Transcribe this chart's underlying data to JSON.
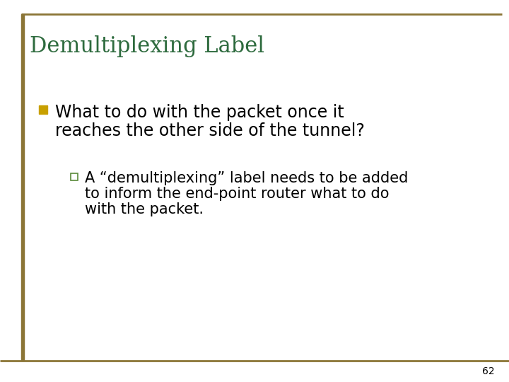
{
  "title": "Demultiplexing Label",
  "title_color": "#2E6B3E",
  "title_fontsize": 22,
  "background_color": "#FFFFFF",
  "border_color": "#8B7536",
  "slide_number": "62",
  "bullet1_marker_color": "#C8A000",
  "bullet1_text_line1": "What to do with the packet once it",
  "bullet1_text_line2": "reaches the other side of the tunnel?",
  "bullet1_fontsize": 17,
  "bullet2_marker_edgecolor": "#5A8A3A",
  "bullet2_text_line1": "A “demultiplexing” label needs to be added",
  "bullet2_text_line2": "to inform the end-point router what to do",
  "bullet2_text_line3": "with the packet.",
  "bullet2_fontsize": 15,
  "left_bar_color": "#8B7536"
}
